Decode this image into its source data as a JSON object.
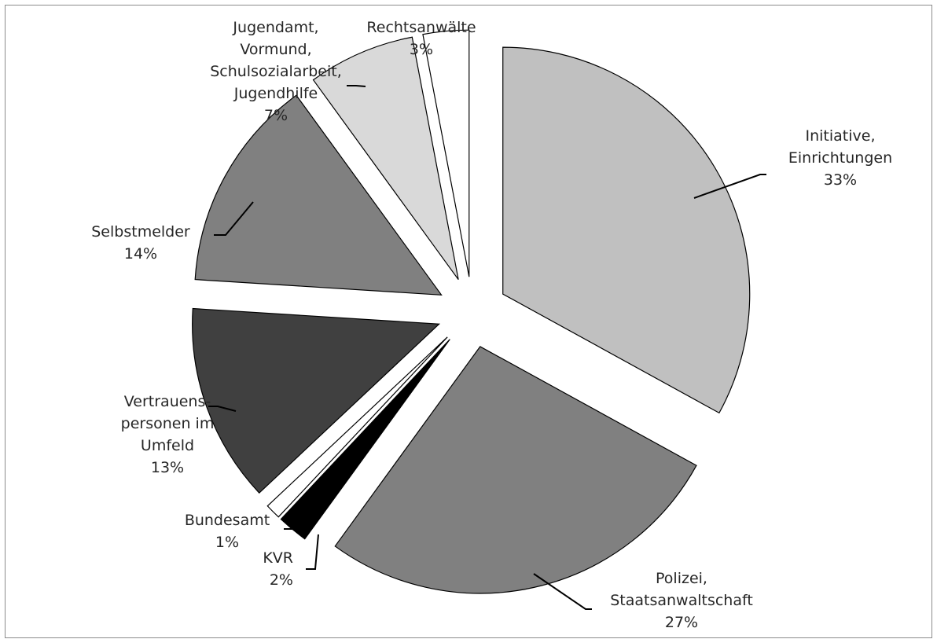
{
  "chart_data": {
    "type": "pie",
    "title": "",
    "exploded": true,
    "slices": [
      {
        "lines": [
          "Initiative,",
          "Einrichtungen"
        ],
        "percent_label": "33%",
        "value": 33,
        "color": "#c0c0c0"
      },
      {
        "lines": [
          "Polizei,",
          "Staatsanwaltschaft"
        ],
        "percent_label": "27%",
        "value": 27,
        "color": "#808080"
      },
      {
        "lines": [
          "KVR"
        ],
        "percent_label": "2%",
        "value": 2,
        "color": "#000000"
      },
      {
        "lines": [
          "Bundesamt"
        ],
        "percent_label": "1%",
        "value": 1,
        "color": "#ffffff"
      },
      {
        "lines": [
          "Vertrauens-",
          "personen im",
          "Umfeld"
        ],
        "percent_label": "13%",
        "value": 13,
        "color": "#404040"
      },
      {
        "lines": [
          "Selbstmelder"
        ],
        "percent_label": "14%",
        "value": 14,
        "color": "#808080"
      },
      {
        "lines": [
          "Jugendamt,",
          "Vormund,",
          "Schulsozialarbeit,",
          "Jugendhilfe"
        ],
        "percent_label": "7%",
        "value": 7,
        "color": "#d9d9d9"
      },
      {
        "lines": [
          "Rechtsanwälte"
        ],
        "percent_label": "3%",
        "value": 3,
        "color": "#ffffff"
      }
    ]
  }
}
